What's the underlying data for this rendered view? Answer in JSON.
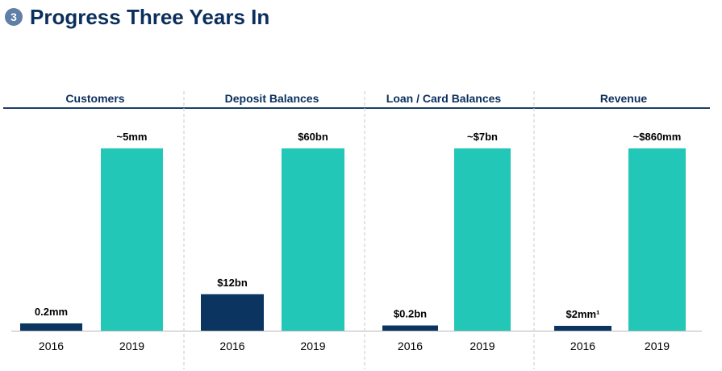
{
  "header": {
    "step_number": "3",
    "title": "Progress Three Years In"
  },
  "colors": {
    "navy": "#0b3560",
    "teal": "#22c7b8",
    "title": "#0b2f5c",
    "badge": "#5f7fa6",
    "divider": "#1d3f66"
  },
  "chart_data": [
    {
      "type": "bar",
      "title": "Customers",
      "categories": [
        "2016",
        "2019"
      ],
      "values": [
        0.2,
        5
      ],
      "unit": "mm",
      "labels": [
        "0.2mm",
        "~5mm"
      ]
    },
    {
      "type": "bar",
      "title": "Deposit Balances",
      "categories": [
        "2016",
        "2019"
      ],
      "values": [
        12,
        60
      ],
      "unit": "bn",
      "labels": [
        "$12bn",
        "$60bn"
      ]
    },
    {
      "type": "bar",
      "title": "Loan / Card Balances",
      "categories": [
        "2016",
        "2019"
      ],
      "values": [
        0.2,
        7
      ],
      "unit": "bn",
      "labels": [
        "$0.2bn",
        "~$7bn"
      ]
    },
    {
      "type": "bar",
      "title": "Revenue",
      "categories": [
        "2016",
        "2019"
      ],
      "values": [
        2,
        860
      ],
      "unit": "mm",
      "labels": [
        "$2mm¹",
        "~$860mm"
      ]
    }
  ]
}
